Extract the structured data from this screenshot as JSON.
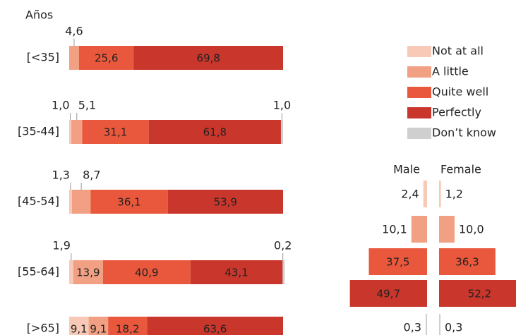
{
  "chart_data": [
    {
      "type": "stacked-barh",
      "title": "Años",
      "categories": [
        "[<35]",
        "[35-44]",
        "[45-54]",
        "[55-64]",
        "[>65]"
      ],
      "series": [
        {
          "name": "Not at all",
          "color": "#f7c9b6",
          "values": [
            null,
            1.0,
            1.3,
            1.9,
            9.1
          ],
          "value_labels": [
            null,
            "1,0",
            "1,3",
            "1,9",
            "9,1"
          ]
        },
        {
          "name": "A little",
          "color": "#f2a083",
          "values": [
            4.6,
            5.1,
            8.7,
            13.9,
            9.1
          ],
          "value_labels": [
            "4,6",
            "5,1",
            "8,7",
            "13,9",
            "9,1"
          ]
        },
        {
          "name": "Quite well",
          "color": "#e9583c",
          "values": [
            25.6,
            31.1,
            36.1,
            40.9,
            18.2
          ],
          "value_labels": [
            "25,6",
            "31,1",
            "36,1",
            "40,9",
            "18,2"
          ]
        },
        {
          "name": "Perfectly",
          "color": "#c9362b",
          "values": [
            69.8,
            61.8,
            53.9,
            43.1,
            63.6
          ],
          "value_labels": [
            "69,8",
            "61,8",
            "53,9",
            "43,1",
            "63,6"
          ]
        },
        {
          "name": "Don’t know",
          "color": "#cfcfcf",
          "values": [
            null,
            1.0,
            null,
            0.2,
            null
          ],
          "value_labels": [
            null,
            "1,0",
            null,
            "0,2",
            null
          ]
        }
      ]
    },
    {
      "type": "butterfly-bar",
      "colors": [
        "#f7c9b6",
        "#f2a083",
        "#e9583c",
        "#c9362b",
        "#cfcfcf"
      ],
      "series": [
        {
          "name": "Male",
          "values": [
            2.4,
            10.1,
            37.5,
            49.7,
            0.3
          ],
          "value_labels": [
            "2,4",
            "10,1",
            "37,5",
            "49,7",
            "0,3"
          ]
        },
        {
          "name": "Female",
          "values": [
            1.2,
            10.0,
            36.3,
            52.2,
            0.3
          ],
          "value_labels": [
            "1,2",
            "10,0",
            "36,3",
            "52,2",
            "0,3"
          ]
        }
      ]
    }
  ]
}
